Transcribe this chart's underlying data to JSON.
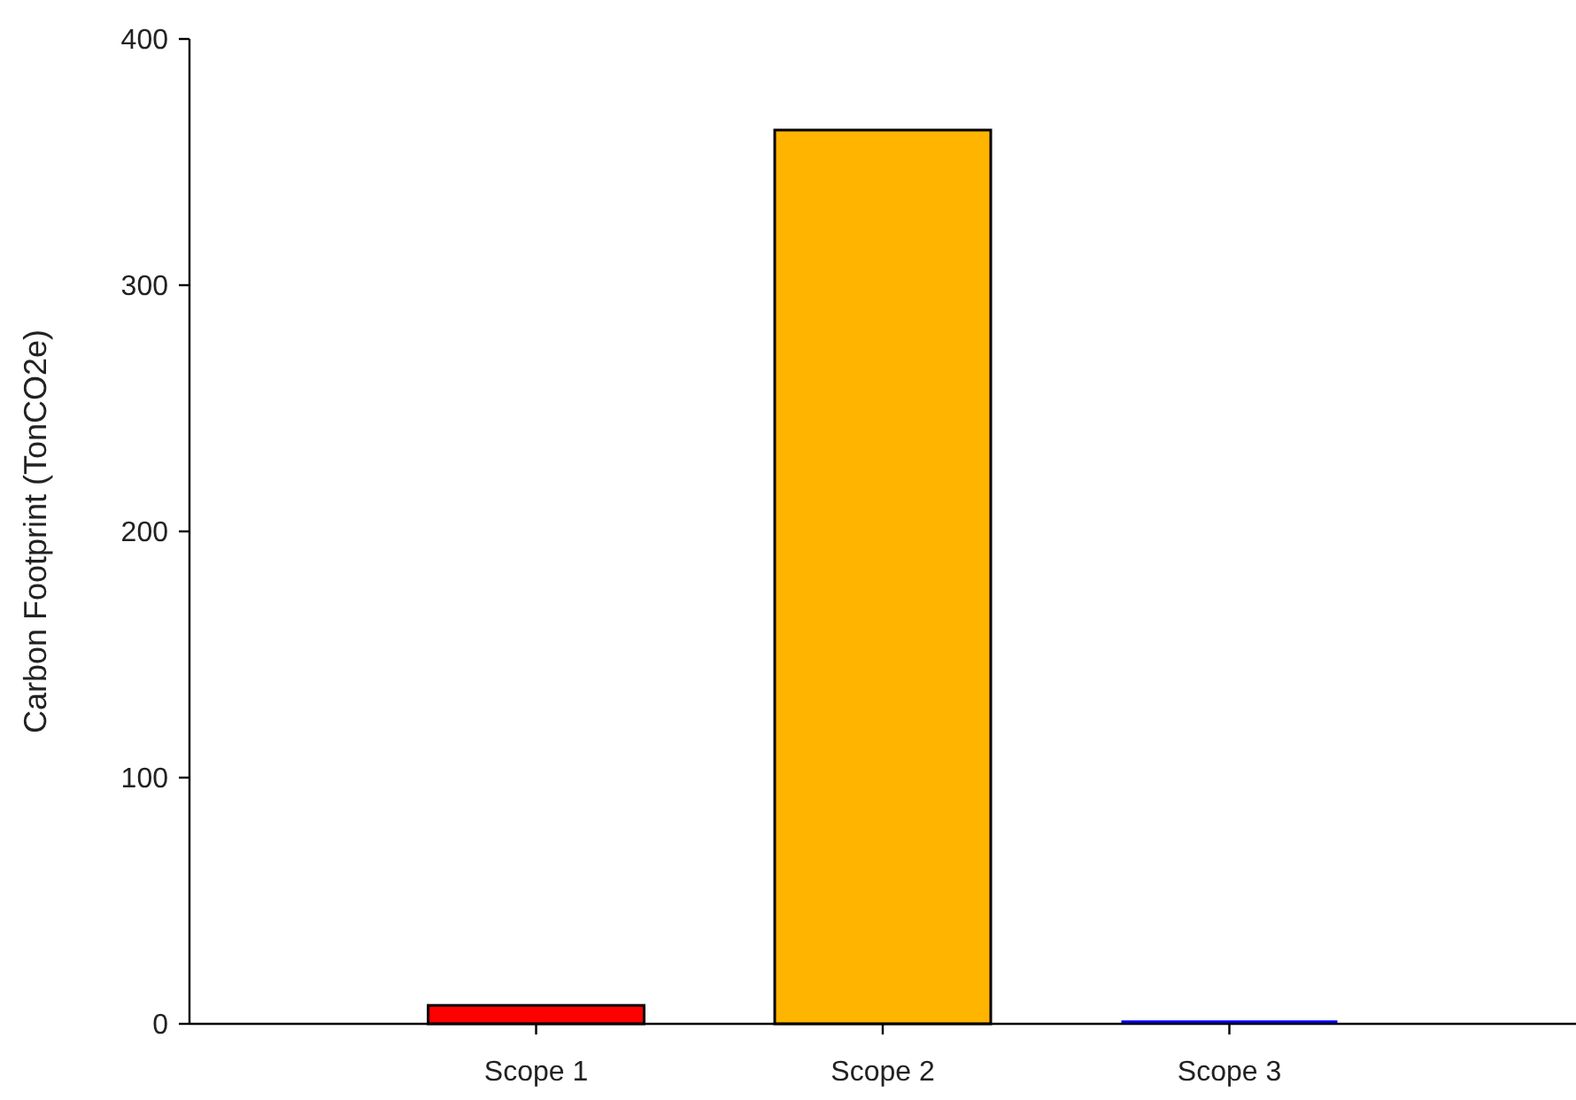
{
  "chart_data": {
    "type": "bar",
    "ylabel": "Carbon Footprint (TonCO2e)",
    "categories": [
      "Scope 1",
      "Scope 2",
      "Scope 3"
    ],
    "values": [
      7.5,
      363,
      1.4
    ],
    "colors": [
      "#ff0000",
      "#ffb400",
      "#0000ff"
    ],
    "ylim": [
      0,
      400
    ],
    "yticks": [
      0,
      100,
      200,
      300,
      400
    ],
    "grid": false
  }
}
